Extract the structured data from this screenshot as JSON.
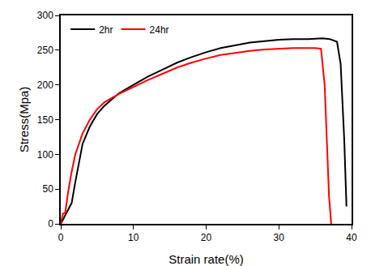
{
  "chart_data": {
    "type": "line",
    "x_label": "Strain rate(%)",
    "y_label": "Stress(Mpa)",
    "xlim": [
      0,
      40
    ],
    "xticks": [
      0,
      10,
      20,
      30,
      40
    ],
    "ylim": [
      0,
      300
    ],
    "yticks": [
      0,
      50,
      100,
      150,
      200,
      250,
      300
    ],
    "grid": false,
    "legend": "upper left",
    "series": [
      {
        "name": "2hr",
        "color": "#000000",
        "x": [
          0,
          0.5,
          1,
          1.5,
          2,
          2.5,
          3,
          4,
          5,
          6,
          8,
          10,
          12,
          14,
          16,
          18,
          20,
          22,
          24,
          26,
          28,
          30,
          32,
          34,
          36,
          37,
          38,
          38.5,
          39,
          39.3
        ],
        "values": [
          0,
          10,
          20,
          30,
          60,
          90,
          115,
          140,
          158,
          170,
          188,
          200,
          212,
          222,
          232,
          240,
          247,
          253,
          257,
          261,
          263,
          265,
          266,
          266,
          267,
          266,
          262,
          230,
          120,
          25
        ]
      },
      {
        "name": "24hr",
        "color": "#ff0000",
        "x": [
          0,
          0.3,
          0.6,
          1,
          1.5,
          2,
          3,
          4,
          5,
          6,
          8,
          10,
          12,
          14,
          16,
          18,
          20,
          22,
          24,
          26,
          28,
          30,
          32,
          34,
          35,
          35.8,
          36.3,
          36.6,
          36.9,
          37.2
        ],
        "values": [
          0,
          15,
          15,
          45,
          75,
          100,
          130,
          150,
          165,
          175,
          187,
          197,
          207,
          216,
          225,
          232,
          238,
          243,
          246,
          249,
          251,
          252,
          253,
          253,
          253,
          252,
          200,
          120,
          40,
          0
        ]
      }
    ]
  }
}
